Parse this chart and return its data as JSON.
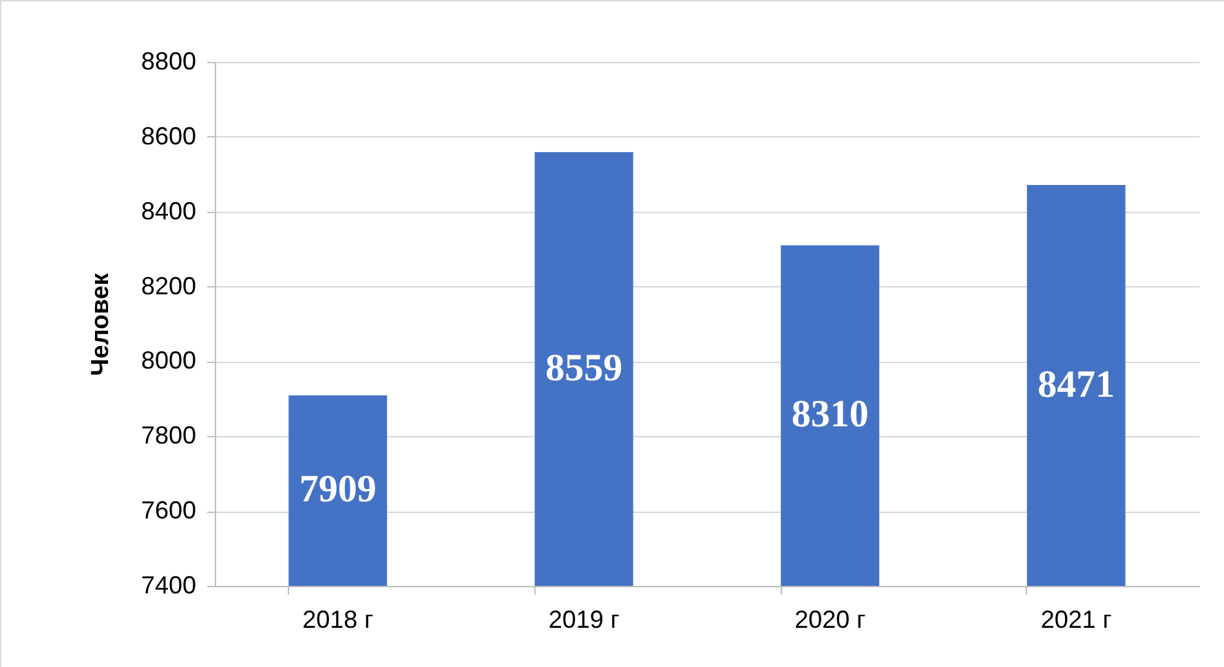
{
  "chart_data": {
    "type": "bar",
    "ylabel": "Человек",
    "categories": [
      "2018 г",
      "2019 г",
      "2020 г",
      "2021 г"
    ],
    "values": [
      7909,
      8559,
      8310,
      8471
    ],
    "color": "#4472c4",
    "ylim": [
      7400,
      8800
    ],
    "yticks": [
      7400,
      7600,
      7800,
      8000,
      8200,
      8400,
      8600,
      8800
    ],
    "grid": "y",
    "data_labels": true
  }
}
